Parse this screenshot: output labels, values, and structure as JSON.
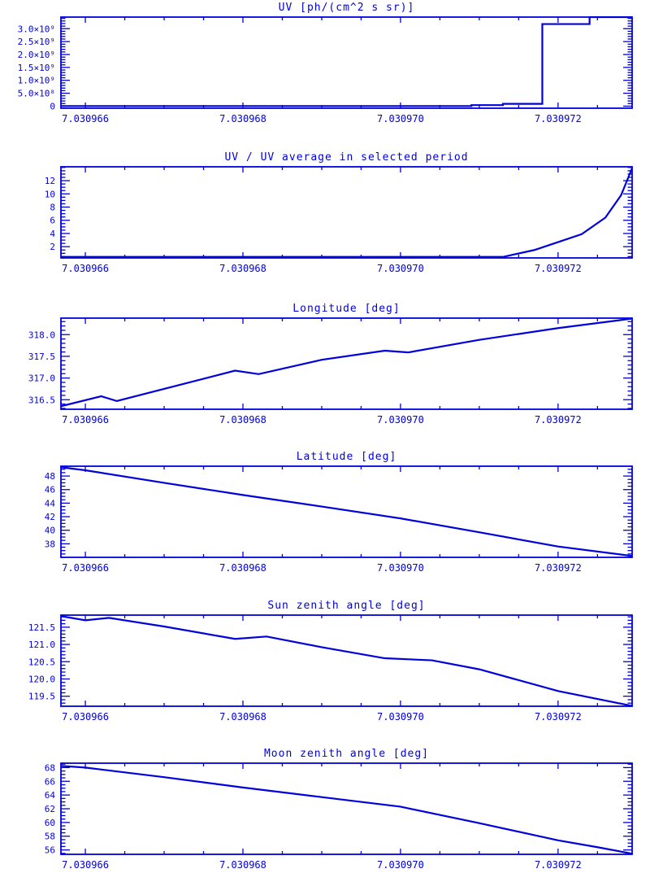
{
  "page": {
    "background": "#ffffff",
    "accent": "#0000dd"
  },
  "chart_data": [
    {
      "id": "uv",
      "type": "line",
      "title": "UV [ph/(cm^2 s sr)]",
      "xlabel": "",
      "ylabel": "",
      "grid": false,
      "legend": null,
      "xlim": [
        7.03096569,
        7.03097294
      ],
      "ylim": [
        -80000000.0,
        3450000000.0
      ],
      "x_major_ticks": [
        7.030966,
        7.030968,
        7.03097,
        7.030972
      ],
      "x_tick_labels": [
        "7.030966",
        "7.030968",
        "7.030970",
        "7.030972"
      ],
      "x_minor_step": 5e-07,
      "y_major_ticks": [
        0,
        500000000.0,
        1000000000.0,
        1500000000.0,
        2000000000.0,
        2500000000.0,
        3000000000.0
      ],
      "y_tick_labels": [
        "0",
        "5.0×10⁸",
        "1.0×10⁹",
        "1.5×10⁹",
        "2.0×10⁹",
        "2.5×10⁹",
        "3.0×10⁹"
      ],
      "y_minor_step": 100000000.0,
      "points": {
        "x": [
          7.03096569,
          7.0309709,
          7.0309709,
          7.0309713,
          7.0309713,
          7.0309718,
          7.0309718,
          7.0309724,
          7.0309724,
          7.03097294
        ],
        "y": [
          5000000.0,
          5000000.0,
          40000000.0,
          40000000.0,
          90000000.0,
          90000000.0,
          3180000000.0,
          3180000000.0,
          3450000000.0,
          3450000000.0
        ]
      }
    },
    {
      "id": "uv-ratio",
      "type": "line",
      "title": "UV / UV average in selected period",
      "xlabel": "",
      "ylabel": "",
      "grid": false,
      "legend": null,
      "xlim": [
        7.03096569,
        7.03097294
      ],
      "ylim": [
        0.3,
        14.1
      ],
      "x_major_ticks": [
        7.030966,
        7.030968,
        7.03097,
        7.030972
      ],
      "x_tick_labels": [
        "7.030966",
        "7.030968",
        "7.030970",
        "7.030972"
      ],
      "x_minor_step": 5e-07,
      "y_major_ticks": [
        2,
        4,
        6,
        8,
        10,
        12
      ],
      "y_tick_labels": [
        "2",
        "4",
        "6",
        "8",
        "10",
        "12"
      ],
      "y_minor_step": 0.5,
      "points": {
        "x": [
          7.03096569,
          7.0309713,
          7.0309717,
          7.030972,
          7.0309723,
          7.0309726,
          7.0309728,
          7.03097294
        ],
        "y": [
          0.45,
          0.45,
          1.5,
          2.7,
          3.9,
          6.4,
          9.8,
          13.9
        ]
      }
    },
    {
      "id": "longitude",
      "type": "line",
      "title": "Longitude [deg]",
      "xlabel": "",
      "ylabel": "",
      "grid": false,
      "legend": null,
      "xlim": [
        7.03096569,
        7.03097294
      ],
      "ylim": [
        316.28,
        318.38
      ],
      "x_major_ticks": [
        7.030966,
        7.030968,
        7.03097,
        7.030972
      ],
      "x_tick_labels": [
        "7.030966",
        "7.030968",
        "7.030970",
        "7.030972"
      ],
      "x_minor_step": 5e-07,
      "y_major_ticks": [
        316.5,
        317.0,
        317.5,
        318.0
      ],
      "y_tick_labels": [
        "316.5",
        "317.0",
        "317.5",
        "318.0"
      ],
      "y_minor_step": 0.1,
      "points": {
        "x": [
          7.03096569,
          7.0309662,
          7.0309664,
          7.030967,
          7.0309679,
          7.0309682,
          7.030969,
          7.0309698,
          7.0309701,
          7.030971,
          7.030972,
          7.03097294
        ],
        "y": [
          316.35,
          316.58,
          316.47,
          316.75,
          317.17,
          317.09,
          317.42,
          317.63,
          317.59,
          317.88,
          318.15,
          318.37
        ]
      }
    },
    {
      "id": "latitude",
      "type": "line",
      "title": "Latitude [deg]",
      "xlabel": "",
      "ylabel": "",
      "grid": false,
      "legend": null,
      "xlim": [
        7.03096569,
        7.03097294
      ],
      "ylim": [
        36.0,
        49.45
      ],
      "x_major_ticks": [
        7.030966,
        7.030968,
        7.03097,
        7.030972
      ],
      "x_tick_labels": [
        "7.030966",
        "7.030968",
        "7.030970",
        "7.030972"
      ],
      "x_minor_step": 5e-07,
      "y_major_ticks": [
        38,
        40,
        42,
        44,
        46,
        48
      ],
      "y_tick_labels": [
        "38",
        "40",
        "42",
        "44",
        "46",
        "48"
      ],
      "y_minor_step": 0.5,
      "points": {
        "x": [
          7.03096569,
          7.030966,
          7.030967,
          7.030968,
          7.030969,
          7.03097,
          7.030971,
          7.030972,
          7.03097294
        ],
        "y": [
          49.3,
          48.85,
          47.0,
          45.2,
          43.5,
          41.75,
          39.7,
          37.6,
          36.2
        ]
      }
    },
    {
      "id": "sun-zenith",
      "type": "line",
      "title": "Sun zenith angle [deg]",
      "xlabel": "",
      "ylabel": "",
      "grid": false,
      "legend": null,
      "xlim": [
        7.03096569,
        7.03097294
      ],
      "ylim": [
        119.21,
        121.85
      ],
      "x_major_ticks": [
        7.030966,
        7.030968,
        7.03097,
        7.030972
      ],
      "x_tick_labels": [
        "7.030966",
        "7.030968",
        "7.030970",
        "7.030972"
      ],
      "x_minor_step": 5e-07,
      "y_major_ticks": [
        119.5,
        120.0,
        120.5,
        121.0,
        121.5
      ],
      "y_tick_labels": [
        "119.5",
        "120.0",
        "120.5",
        "121.0",
        "121.5"
      ],
      "y_minor_step": 0.1,
      "points": {
        "x": [
          7.03096569,
          7.030966,
          7.0309663,
          7.030967,
          7.0309679,
          7.0309683,
          7.030969,
          7.0309698,
          7.0309704,
          7.030971,
          7.030972,
          7.03097294
        ],
        "y": [
          121.82,
          121.7,
          121.77,
          121.52,
          121.16,
          121.23,
          120.92,
          120.6,
          120.54,
          120.28,
          119.65,
          119.22
        ]
      }
    },
    {
      "id": "moon-zenith",
      "type": "line",
      "title": "Moon zenith angle [deg]",
      "xlabel": "",
      "ylabel": "",
      "grid": false,
      "legend": null,
      "xlim": [
        7.03096569,
        7.03097294
      ],
      "ylim": [
        55.36,
        68.64
      ],
      "x_major_ticks": [
        7.030966,
        7.030968,
        7.03097,
        7.030972
      ],
      "x_tick_labels": [
        "7.030966",
        "7.030968",
        "7.030970",
        "7.030972"
      ],
      "x_minor_step": 5e-07,
      "y_major_ticks": [
        56,
        58,
        60,
        62,
        64,
        66,
        68
      ],
      "y_tick_labels": [
        "56",
        "58",
        "60",
        "62",
        "64",
        "66",
        "68"
      ],
      "y_minor_step": 0.5,
      "points": {
        "x": [
          7.03096569,
          7.030966,
          7.030967,
          7.030968,
          7.030969,
          7.03097,
          7.030971,
          7.030972,
          7.0309725,
          7.03097294
        ],
        "y": [
          68.25,
          68.0,
          66.6,
          65.1,
          63.7,
          62.3,
          59.9,
          57.4,
          56.4,
          55.45
        ]
      }
    }
  ]
}
